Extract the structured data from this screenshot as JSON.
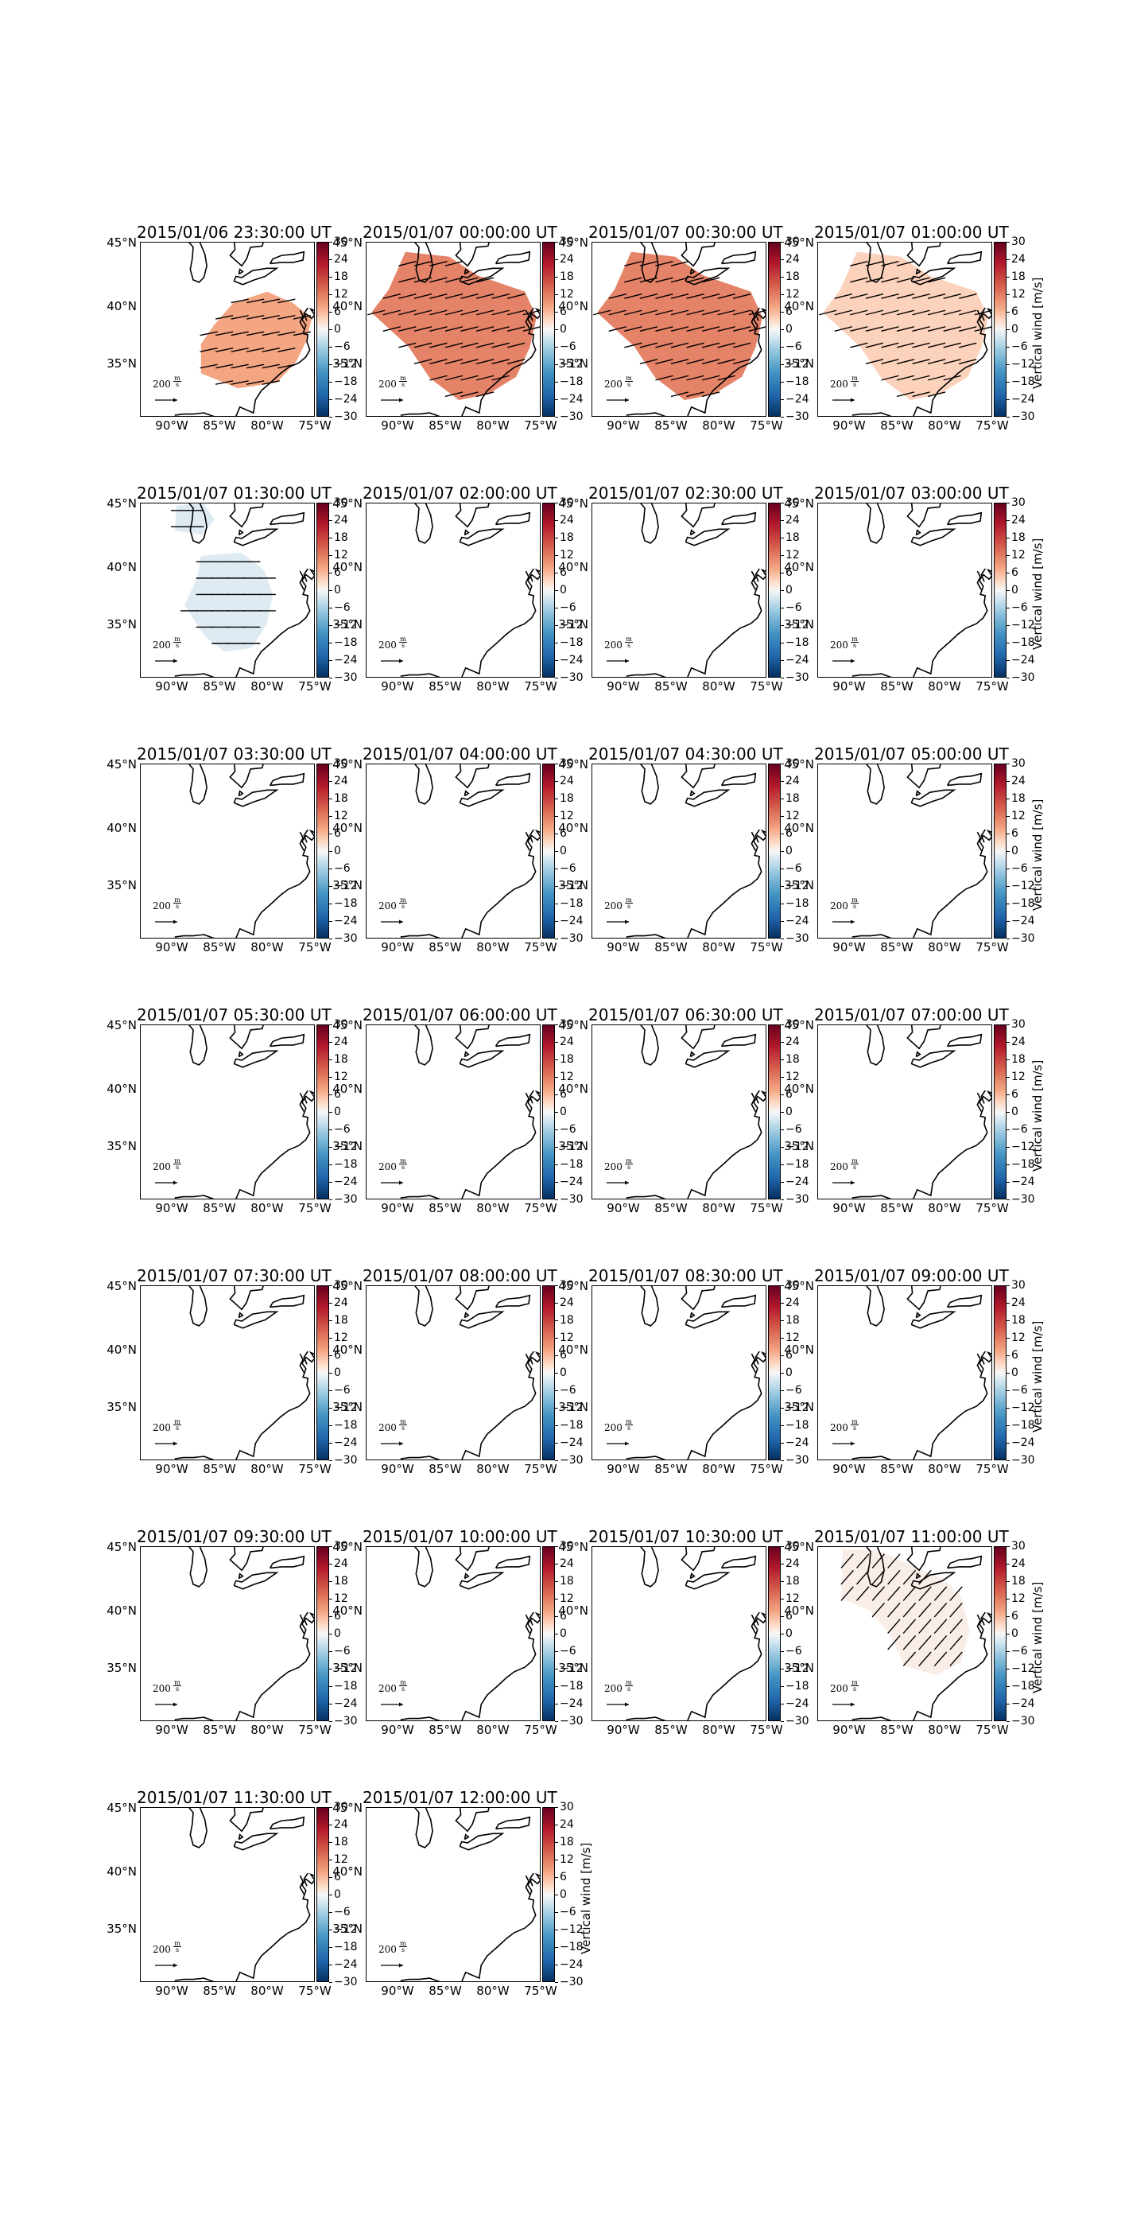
{
  "figure": {
    "colorbar": {
      "label": "Vertical wind [m/s]",
      "ticks": [
        "30",
        "24",
        "18",
        "12",
        "6",
        "0",
        "−6",
        "−12",
        "−18",
        "−24",
        "−30"
      ],
      "range": [
        -30,
        30
      ],
      "colormap": "RdBu_r"
    },
    "map": {
      "lat_labels": [
        "45°N",
        "40°N",
        "35°N"
      ],
      "lon_labels": [
        "90°W",
        "85°W",
        "80°W",
        "75°W"
      ],
      "extent": {
        "lon": [
          -93,
          -75
        ],
        "lat": [
          30,
          45
        ]
      },
      "scale_arrow": {
        "value": "200",
        "unit_top": "m",
        "unit_bottom": "s"
      }
    },
    "panels": [
      {
        "title": "2015/01/06 23:30:00 UT",
        "value": 12,
        "field": "east"
      },
      {
        "title": "2015/01/07 00:00:00 UT",
        "value": 15,
        "field": "broad"
      },
      {
        "title": "2015/01/07 00:30:00 UT",
        "value": 15,
        "field": "broad"
      },
      {
        "title": "2015/01/07 01:00:00 UT",
        "value": 7,
        "field": "broad"
      },
      {
        "title": "2015/01/07 01:30:00 UT",
        "value": -4,
        "field": "split"
      },
      {
        "title": "2015/01/07 02:00:00 UT",
        "value": 0,
        "field": "none"
      },
      {
        "title": "2015/01/07 02:30:00 UT",
        "value": 0,
        "field": "none"
      },
      {
        "title": "2015/01/07 03:00:00 UT",
        "value": 0,
        "field": "none"
      },
      {
        "title": "2015/01/07 03:30:00 UT",
        "value": 0,
        "field": "none"
      },
      {
        "title": "2015/01/07 04:00:00 UT",
        "value": 0,
        "field": "none"
      },
      {
        "title": "2015/01/07 04:30:00 UT",
        "value": 0,
        "field": "none"
      },
      {
        "title": "2015/01/07 05:00:00 UT",
        "value": 0,
        "field": "none"
      },
      {
        "title": "2015/01/07 05:30:00 UT",
        "value": 0,
        "field": "none"
      },
      {
        "title": "2015/01/07 06:00:00 UT",
        "value": 0,
        "field": "none"
      },
      {
        "title": "2015/01/07 06:30:00 UT",
        "value": 0,
        "field": "none"
      },
      {
        "title": "2015/01/07 07:00:00 UT",
        "value": 0,
        "field": "none"
      },
      {
        "title": "2015/01/07 07:30:00 UT",
        "value": 0,
        "field": "none"
      },
      {
        "title": "2015/01/07 08:00:00 UT",
        "value": 0,
        "field": "none"
      },
      {
        "title": "2015/01/07 08:30:00 UT",
        "value": 0,
        "field": "none"
      },
      {
        "title": "2015/01/07 09:00:00 UT",
        "value": 0,
        "field": "none"
      },
      {
        "title": "2015/01/07 09:30:00 UT",
        "value": 0,
        "field": "none"
      },
      {
        "title": "2015/01/07 10:00:00 UT",
        "value": 0,
        "field": "none"
      },
      {
        "title": "2015/01/07 10:30:00 UT",
        "value": 0,
        "field": "none"
      },
      {
        "title": "2015/01/07 11:00:00 UT",
        "value": 2,
        "field": "north"
      },
      {
        "title": "2015/01/07 11:30:00 UT",
        "value": 0,
        "field": "none"
      },
      {
        "title": "2015/01/07 12:00:00 UT",
        "value": 0,
        "field": "none"
      }
    ]
  }
}
